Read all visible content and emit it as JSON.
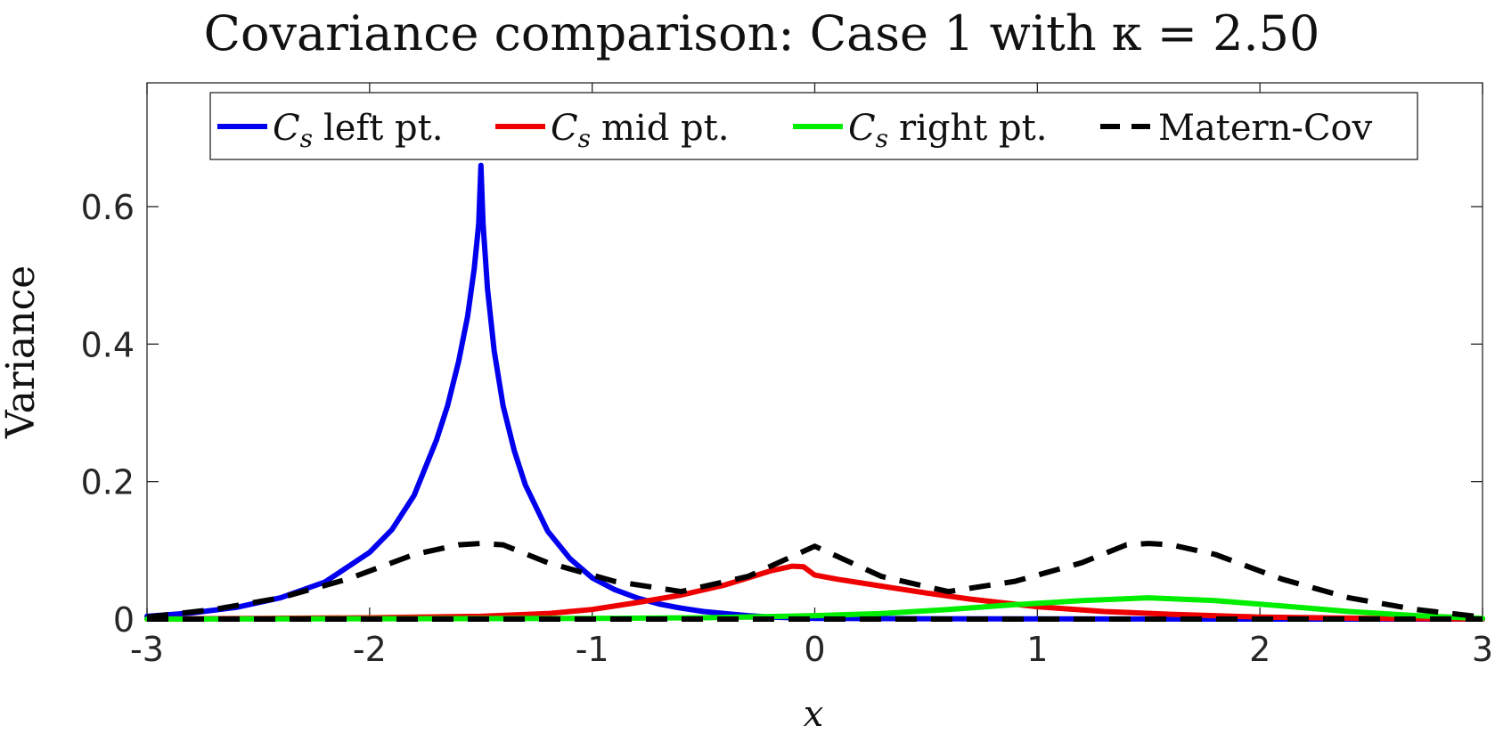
{
  "chart_data": {
    "type": "line",
    "title": "Covariance comparison: Case 1 with κ = 2.50",
    "xlabel": "x",
    "ylabel": "Variance",
    "xlim": [
      -3,
      3
    ],
    "ylim": [
      0,
      0.78
    ],
    "xticks": [
      -3,
      -2,
      -1,
      0,
      1,
      2,
      3
    ],
    "xtick_labels": [
      "-3",
      "-2",
      "-1",
      "0",
      "1",
      "2",
      "3"
    ],
    "yticks": [
      0,
      0.2,
      0.4,
      0.6
    ],
    "ytick_labels": [
      "0",
      "0.2",
      "0.4",
      "0.6"
    ],
    "grid": false,
    "legend_position": "top",
    "series": [
      {
        "name": "C_s left pt.",
        "color": "#0000ee",
        "style": "solid",
        "x": [
          -3,
          -2.8,
          -2.6,
          -2.4,
          -2.2,
          -2.0,
          -1.9,
          -1.8,
          -1.7,
          -1.65,
          -1.6,
          -1.56,
          -1.53,
          -1.51,
          -1.5,
          -1.49,
          -1.47,
          -1.44,
          -1.4,
          -1.35,
          -1.3,
          -1.2,
          -1.1,
          -1.0,
          -0.9,
          -0.8,
          -0.7,
          -0.6,
          -0.5,
          -0.4,
          -0.3,
          -0.2,
          -0.1,
          0,
          0.5,
          1,
          1.5,
          2,
          2.5,
          3
        ],
        "y": [
          0.004,
          0.009,
          0.017,
          0.031,
          0.054,
          0.097,
          0.13,
          0.18,
          0.26,
          0.31,
          0.375,
          0.44,
          0.51,
          0.575,
          0.66,
          0.575,
          0.48,
          0.39,
          0.31,
          0.245,
          0.195,
          0.128,
          0.088,
          0.06,
          0.043,
          0.031,
          0.022,
          0.016,
          0.011,
          0.008,
          0.005,
          0.003,
          0.002,
          0.001,
          0.0005,
          0.0002,
          0.0001,
          0,
          0,
          0
        ]
      },
      {
        "name": "C_s mid pt.",
        "color": "#ee0000",
        "style": "solid",
        "x": [
          -3,
          -2.5,
          -2.0,
          -1.5,
          -1.2,
          -1.0,
          -0.8,
          -0.6,
          -0.4,
          -0.3,
          -0.2,
          -0.1,
          -0.05,
          0,
          0.1,
          0.3,
          0.5,
          0.7,
          1.0,
          1.3,
          1.6,
          2.0,
          2.5,
          3
        ],
        "y": [
          0,
          0.001,
          0.002,
          0.004,
          0.008,
          0.014,
          0.024,
          0.035,
          0.05,
          0.06,
          0.07,
          0.077,
          0.076,
          0.064,
          0.058,
          0.048,
          0.038,
          0.029,
          0.018,
          0.011,
          0.007,
          0.003,
          0.001,
          0
        ]
      },
      {
        "name": "C_s right pt.",
        "color": "#00ee00",
        "style": "solid",
        "x": [
          -3,
          -2,
          -1,
          -0.5,
          0,
          0.3,
          0.6,
          0.9,
          1.2,
          1.5,
          1.8,
          2.1,
          2.4,
          2.7,
          3
        ],
        "y": [
          0,
          0.0005,
          0.001,
          0.002,
          0.005,
          0.008,
          0.014,
          0.021,
          0.027,
          0.031,
          0.027,
          0.019,
          0.011,
          0.005,
          0.001
        ]
      },
      {
        "name": "Matern-Cov",
        "color": "#000000",
        "style": "dashed",
        "x": [
          -3,
          -2.7,
          -2.4,
          -2.1,
          -1.8,
          -1.6,
          -1.5,
          -1.4,
          -1.2,
          -0.9,
          -0.6,
          -0.3,
          0,
          0.3,
          0.6,
          0.9,
          1.2,
          1.4,
          1.5,
          1.6,
          1.8,
          2.1,
          2.4,
          2.7,
          3
        ],
        "y": [
          0.003,
          0.014,
          0.031,
          0.058,
          0.094,
          0.108,
          0.11,
          0.108,
          0.082,
          0.055,
          0.04,
          0.062,
          0.106,
          0.062,
          0.04,
          0.055,
          0.082,
          0.108,
          0.11,
          0.108,
          0.094,
          0.058,
          0.031,
          0.014,
          0.003
        ]
      },
      {
        "name": "",
        "color": "#000000",
        "style": "dashed",
        "x": [
          -3,
          3
        ],
        "y": [
          0,
          0
        ]
      }
    ]
  },
  "legend": {
    "cs_left": "left pt.",
    "cs_mid": "mid pt.",
    "cs_right": "right pt.",
    "matern": "Matern-Cov",
    "symbol": "C",
    "subscript": "s"
  }
}
